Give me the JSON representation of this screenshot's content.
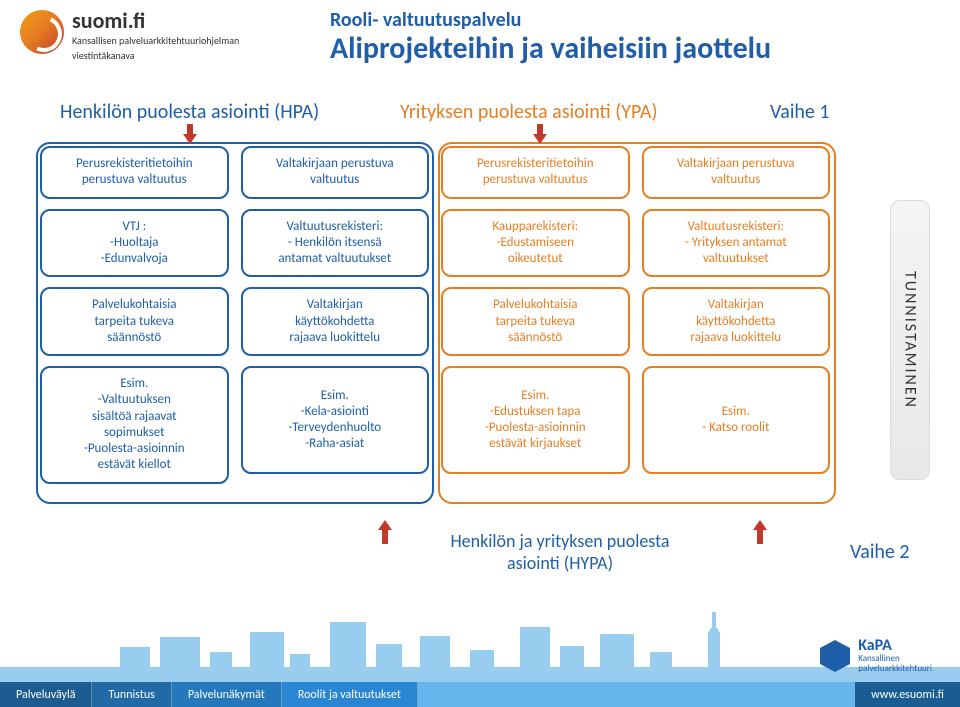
{
  "colors": {
    "blue": "#1f5ea8",
    "orange": "#e67e22",
    "red": "#c0392b",
    "footer_segments": [
      "#1d5c90",
      "#216aa6",
      "#2678bc",
      "#2a86d2",
      "#2f94e8"
    ],
    "footer_fill": "#66b6ed",
    "city_silhouette": "#8fc8ef"
  },
  "brand": {
    "name": "suomi.fi",
    "subtitle_l1": "Kansallisen palveluarkkitehtuuriohjelman",
    "subtitle_l2": "viestintäkanava"
  },
  "titles": {
    "super": "Rooli- valtuutuspalvelu",
    "main": "Aliprojekteihin ja vaiheisiin jaottelu"
  },
  "sections": {
    "left": "Henkilön puolesta asiointi (HPA)",
    "mid": "Yrityksen puolesta asiointi (YPA)",
    "phase1": "Vaihe 1"
  },
  "columns": [
    {
      "color": "blue",
      "header": "Perusrekisteritietoihin\nperustuva valtuutus",
      "cells": [
        "VTJ :\n-Huoltaja\n-Edunvalvoja",
        "Palvelukohtaisia\ntarpeita tukeva\nsäännöstö",
        "Esim.\n-Valtuutuksen\nsisältöä rajaavat\nsopimukset\n-Puolesta-asioinnin\nestävät kiellot"
      ]
    },
    {
      "color": "blue",
      "header": "Valtakirjaan perustuva\nvaltuutus",
      "cells": [
        "Valtuutusrekisteri:\n- Henkilön itsensä\nantamat valtuutukset",
        "Valtakirjan\nkäyttökohdetta\nrajaava luokittelu",
        "Esim.\n-Kela-asiointi\n-Terveydenhuolto\n-Raha-asiat"
      ]
    },
    {
      "color": "orange",
      "header": "Perusrekisteritietoihin\nperustuva valtuutus",
      "cells": [
        "Kaupparekisteri:\n-Edustamiseen\noikeutetut",
        "Palvelukohtaisia\ntarpeita tukeva\nsäännöstö",
        "Esim.\n-Edustuksen tapa\n-Puolesta-asioinnin\nestävät kirjaukset"
      ]
    },
    {
      "color": "orange",
      "header": "Valtakirjaan perustuva\nvaltuutus",
      "cells": [
        "Valtuutusrekisteri:\n- Yrityksen antamat\nvaltuutukset",
        "Valtakirjan\nkäyttökohdetta\nrajaava luokittelu",
        "Esim.\n- Katso roolit"
      ]
    }
  ],
  "side_panel": "TUNNISTAMINEN",
  "bottom": {
    "hypa": "Henkilön ja yrityksen puolesta\nasiointi (HYPA)",
    "phase2": "Vaihe 2"
  },
  "footer": {
    "items": [
      "Palveluväylä",
      "Tunnistus",
      "Palvelunäkymät",
      "Roolit ja valtuutukset"
    ],
    "url": "www.esuomi.fi",
    "kapa_title": "KaPA",
    "kapa_sub": "Kansallinen\npalveluarkkitehtuuri"
  }
}
